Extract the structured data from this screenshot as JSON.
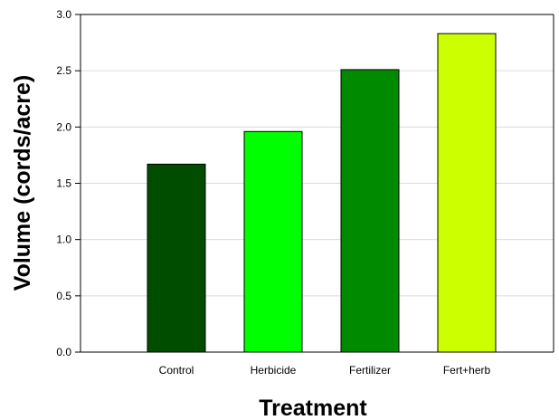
{
  "chart_data": {
    "type": "bar",
    "title": "",
    "xlabel": "Treatment",
    "ylabel": "Volume (cords/acre)",
    "categories": [
      "Control",
      "Herbicide",
      "Fertilizer",
      "Fert+herb"
    ],
    "values": [
      1.67,
      1.96,
      2.51,
      2.83
    ],
    "bar_colors": [
      "#004d00",
      "#00ff00",
      "#008a00",
      "#ccff00"
    ],
    "ylim": [
      0,
      3.0
    ],
    "yticks": [
      "0.0",
      "0.5",
      "1.0",
      "1.5",
      "2.0",
      "2.5",
      "3.0"
    ],
    "grid": true,
    "legend": "none"
  }
}
